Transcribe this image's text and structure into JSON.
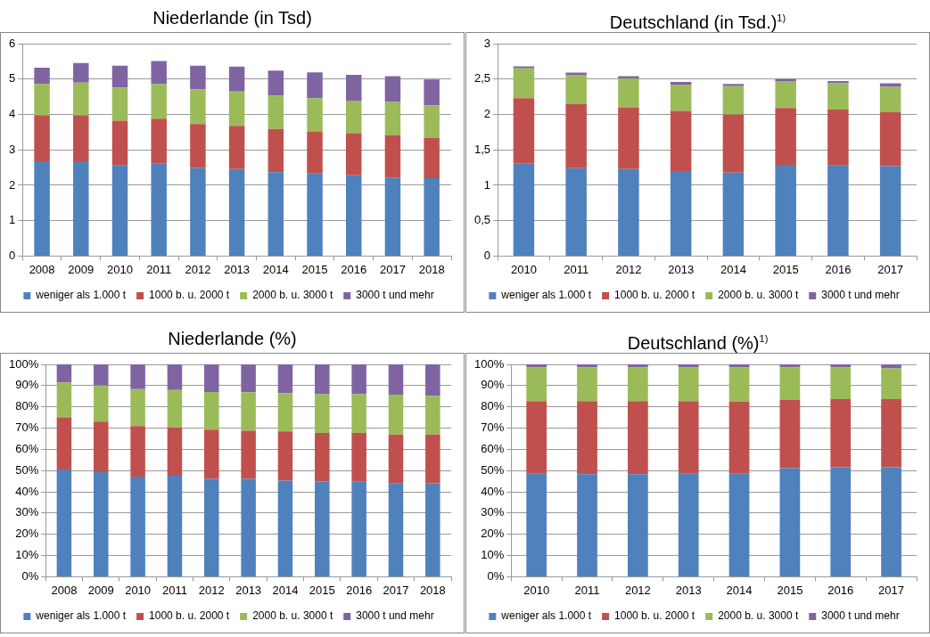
{
  "chart_data": [
    {
      "type": "bar",
      "title": "Niederlande (in Tsd)",
      "stacked": true,
      "grid": "y",
      "legend": "bottom",
      "categories": [
        "2008",
        "2009",
        "2010",
        "2011",
        "2012",
        "2013",
        "2014",
        "2015",
        "2016",
        "2017",
        "2018"
      ],
      "ylim": [
        0,
        6
      ],
      "yticks": [
        0,
        1,
        2,
        3,
        4,
        5,
        6
      ],
      "series": [
        {
          "name": "weniger als 1.000 t",
          "color": "#4f81bd",
          "values": [
            2.68,
            2.68,
            2.57,
            2.62,
            2.49,
            2.46,
            2.37,
            2.33,
            2.28,
            2.22,
            2.2
          ]
        },
        {
          "name": "1000 b. u. 2000 t",
          "color": "#c0504d",
          "values": [
            1.3,
            1.3,
            1.25,
            1.26,
            1.24,
            1.22,
            1.22,
            1.19,
            1.19,
            1.19,
            1.14
          ]
        },
        {
          "name": "2000 b. u. 3000 t",
          "color": "#9bbb59",
          "values": [
            0.88,
            0.92,
            0.94,
            0.98,
            0.98,
            0.97,
            0.94,
            0.94,
            0.92,
            0.94,
            0.92
          ]
        },
        {
          "name": "3000 t und mehr",
          "color": "#8064a2",
          "values": [
            0.46,
            0.55,
            0.62,
            0.65,
            0.67,
            0.7,
            0.71,
            0.73,
            0.73,
            0.73,
            0.73
          ]
        }
      ]
    },
    {
      "type": "bar",
      "title": "Deutschland (in Tsd.)$^{1)}$",
      "stacked": true,
      "grid": "y",
      "legend": "bottom",
      "categories": [
        "2010",
        "2011",
        "2012",
        "2013",
        "2014",
        "2015",
        "2016",
        "2017"
      ],
      "ylim": [
        0,
        3
      ],
      "yticks": [
        0,
        {
          "value": 0.5,
          "label": "0,5"
        },
        1,
        {
          "value": 1.5,
          "label": "1,5"
        },
        2,
        {
          "value": 2.5,
          "label": "2,5"
        },
        3
      ],
      "series": [
        {
          "name": "weniger als 1.000 t",
          "color": "#4f81bd",
          "values": [
            1.31,
            1.24,
            1.23,
            1.2,
            1.18,
            1.29,
            1.28,
            1.27
          ]
        },
        {
          "name": "1000 b. u. 2000 t",
          "color": "#c0504d",
          "values": [
            0.92,
            0.91,
            0.87,
            0.85,
            0.82,
            0.8,
            0.79,
            0.76
          ]
        },
        {
          "name": "2000 b. u. 3000 t",
          "color": "#9bbb59",
          "values": [
            0.42,
            0.41,
            0.41,
            0.37,
            0.4,
            0.38,
            0.37,
            0.36
          ]
        },
        {
          "name": "3000 t und mehr",
          "color": "#8064a2",
          "values": [
            0.03,
            0.03,
            0.03,
            0.04,
            0.03,
            0.03,
            0.03,
            0.05
          ]
        }
      ]
    },
    {
      "type": "bar",
      "title": "Niederlande (%)",
      "stacked": true,
      "grid": "y",
      "legend": "bottom",
      "categories": [
        "2008",
        "2009",
        "2010",
        "2011",
        "2012",
        "2013",
        "2014",
        "2015",
        "2016",
        "2017",
        "2018"
      ],
      "ylim": [
        0,
        100
      ],
      "yticks": [
        {
          "value": 0,
          "label": "0%"
        },
        {
          "value": 10,
          "label": "10%"
        },
        {
          "value": 20,
          "label": "20%"
        },
        {
          "value": 30,
          "label": "30%"
        },
        {
          "value": 40,
          "label": "40%"
        },
        {
          "value": 50,
          "label": "50%"
        },
        {
          "value": 60,
          "label": "60%"
        },
        {
          "value": 70,
          "label": "70%"
        },
        {
          "value": 80,
          "label": "80%"
        },
        {
          "value": 90,
          "label": "90%"
        },
        {
          "value": 100,
          "label": "100%"
        }
      ],
      "series": [
        {
          "name": "weniger als 1.000 t",
          "color": "#4f81bd",
          "values": [
            50.5,
            49.2,
            47.2,
            47.6,
            46.1,
            46.1,
            45.3,
            44.8,
            44.7,
            44.1,
            44.0
          ]
        },
        {
          "name": "1000 b. u. 2000 t",
          "color": "#c0504d",
          "values": [
            24.5,
            23.9,
            23.8,
            22.7,
            23.2,
            22.6,
            23.1,
            22.9,
            23.0,
            22.9,
            23.0
          ]
        },
        {
          "name": "2000 b. u. 3000 t",
          "color": "#9bbb59",
          "values": [
            16.4,
            16.9,
            17.4,
            17.6,
            17.7,
            18.2,
            18.1,
            18.3,
            18.3,
            18.7,
            18.2
          ]
        },
        {
          "name": "3000 t und mehr",
          "color": "#8064a2",
          "values": [
            8.6,
            10.0,
            11.6,
            12.1,
            13.0,
            13.1,
            13.5,
            14.0,
            14.0,
            14.3,
            14.8
          ]
        }
      ]
    },
    {
      "type": "bar",
      "title": "Deutschland (%)$^{1)}$",
      "stacked": true,
      "grid": "y",
      "legend": "bottom",
      "categories": [
        "2010",
        "2011",
        "2012",
        "2013",
        "2014",
        "2015",
        "2016",
        "2017"
      ],
      "ylim": [
        0,
        100
      ],
      "yticks": [
        {
          "value": 0,
          "label": "0%"
        },
        {
          "value": 10,
          "label": "10%"
        },
        {
          "value": 20,
          "label": "20%"
        },
        {
          "value": 30,
          "label": "30%"
        },
        {
          "value": 40,
          "label": "40%"
        },
        {
          "value": 50,
          "label": "50%"
        },
        {
          "value": 60,
          "label": "60%"
        },
        {
          "value": 70,
          "label": "70%"
        },
        {
          "value": 80,
          "label": "80%"
        },
        {
          "value": 90,
          "label": "90%"
        },
        {
          "value": 100,
          "label": "100%"
        }
      ],
      "series": [
        {
          "name": "weniger als 1.000 t",
          "color": "#4f81bd",
          "values": [
            48.5,
            48.3,
            48.3,
            48.5,
            48.5,
            51.1,
            51.5,
            51.5
          ]
        },
        {
          "name": "1000 b. u. 2000 t",
          "color": "#c0504d",
          "values": [
            34.2,
            34.4,
            34.4,
            34.2,
            33.9,
            32.1,
            32.1,
            32.1
          ]
        },
        {
          "name": "2000 b. u. 3000 t",
          "color": "#9bbb59",
          "values": [
            15.8,
            15.8,
            15.8,
            15.8,
            16.1,
            15.3,
            14.9,
            14.5
          ]
        },
        {
          "name": "3000 t und mehr",
          "color": "#8064a2",
          "values": [
            1.5,
            1.5,
            1.5,
            1.5,
            1.5,
            1.5,
            1.5,
            1.9
          ]
        }
      ]
    }
  ]
}
